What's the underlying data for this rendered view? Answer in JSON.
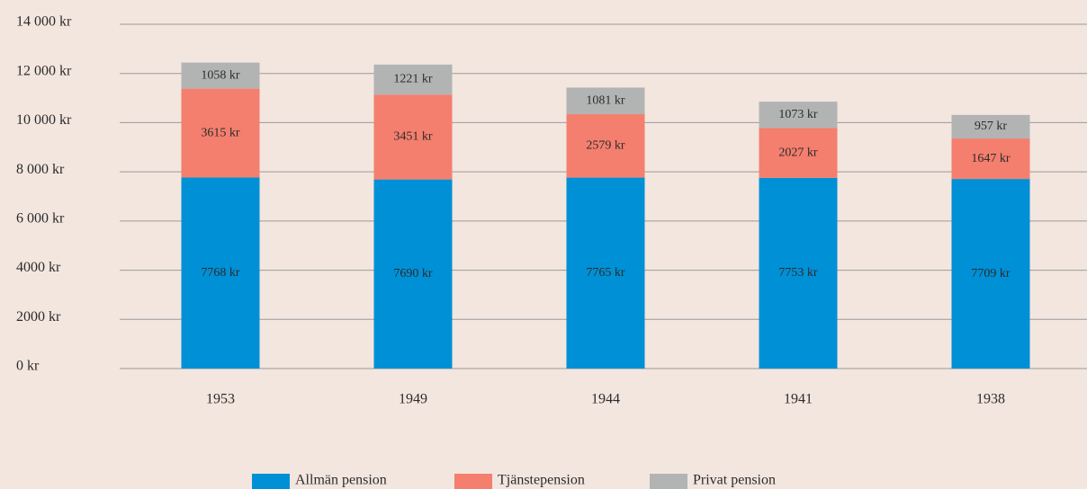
{
  "chart_data": {
    "type": "bar",
    "stacked": true,
    "categories": [
      "1953",
      "1949",
      "1944",
      "1941",
      "1938"
    ],
    "series": [
      {
        "name": "Allmän pension",
        "color": "#0090d6",
        "values": [
          7768,
          7690,
          7765,
          7753,
          7709
        ],
        "value_labels": [
          "7768 kr",
          "7690 kr",
          "7765 kr",
          "7753 kr",
          "7709 kr"
        ]
      },
      {
        "name": "Tjänstepension",
        "color": "#f47f6e",
        "values": [
          3615,
          3451,
          2579,
          2027,
          1647
        ],
        "value_labels": [
          "3615 kr",
          "3451 kr",
          "2579 kr",
          "2027 kr",
          "1647 kr"
        ]
      },
      {
        "name": "Privat pension",
        "color": "#b2b4b4",
        "values": [
          1058,
          1221,
          1081,
          1073,
          957
        ],
        "value_labels": [
          "1058 kr",
          "1221 kr",
          "1081 kr",
          "1073 kr",
          "957 kr"
        ]
      }
    ],
    "ylim": [
      0,
      14000
    ],
    "yticks": [
      {
        "value": 0,
        "label": "0 kr"
      },
      {
        "value": 2000,
        "label": "2000 kr"
      },
      {
        "value": 4000,
        "label": "4000 kr"
      },
      {
        "value": 6000,
        "label": "6 000 kr"
      },
      {
        "value": 8000,
        "label": "8 000 kr"
      },
      {
        "value": 10000,
        "label": "10 000 kr"
      },
      {
        "value": 12000,
        "label": "12 000 kr"
      },
      {
        "value": 14000,
        "label": "14 000 kr"
      }
    ],
    "grid": true,
    "legend": "bottom"
  }
}
